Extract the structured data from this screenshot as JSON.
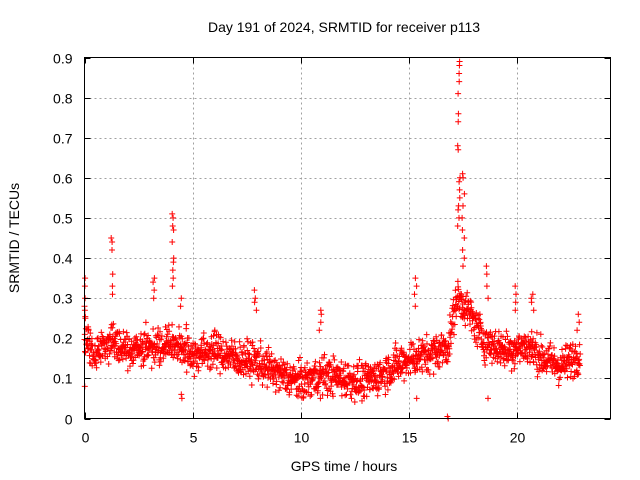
{
  "chart_data": {
    "type": "scatter",
    "title": "Day 191 of 2024, SRMTID for receiver p113",
    "xlabel": "GPS time / hours",
    "ylabel": "SRMTID / TECUs",
    "xlim": [
      0,
      24.3
    ],
    "ylim": [
      0,
      0.9
    ],
    "xticks": [
      0,
      5,
      10,
      15,
      20
    ],
    "xtick_labels": [
      "0",
      "5",
      "10",
      "15",
      "20"
    ],
    "yticks": [
      0,
      0.1,
      0.2,
      0.3,
      0.4,
      0.5,
      0.6,
      0.7,
      0.8,
      0.9
    ],
    "ytick_labels": [
      "0",
      "0.1",
      "0.2",
      "0.3",
      "0.4",
      "0.5",
      "0.6",
      "0.7",
      "0.8",
      "0.9"
    ],
    "grid": true,
    "marker": "+",
    "color": "#ff0000",
    "profile": [
      [
        0.0,
        0.2
      ],
      [
        0.5,
        0.16
      ],
      [
        1.3,
        0.2
      ],
      [
        2.0,
        0.17
      ],
      [
        3.0,
        0.18
      ],
      [
        4.0,
        0.19
      ],
      [
        5.0,
        0.16
      ],
      [
        6.0,
        0.17
      ],
      [
        7.0,
        0.15
      ],
      [
        8.0,
        0.14
      ],
      [
        9.0,
        0.11
      ],
      [
        10.0,
        0.09
      ],
      [
        11.0,
        0.11
      ],
      [
        12.0,
        0.1
      ],
      [
        13.0,
        0.09
      ],
      [
        14.0,
        0.12
      ],
      [
        15.0,
        0.15
      ],
      [
        16.0,
        0.16
      ],
      [
        16.8,
        0.18
      ],
      [
        17.2,
        0.3
      ],
      [
        17.6,
        0.28
      ],
      [
        18.0,
        0.24
      ],
      [
        18.5,
        0.19
      ],
      [
        19.5,
        0.17
      ],
      [
        20.5,
        0.18
      ],
      [
        21.2,
        0.15
      ],
      [
        22.0,
        0.13
      ],
      [
        22.9,
        0.16
      ]
    ],
    "spikes": [
      {
        "x": 0.05,
        "values": [
          0.35,
          0.33,
          0.3,
          0.28,
          0.27,
          0.25,
          0.08
        ]
      },
      {
        "x": 1.25,
        "values": [
          0.45,
          0.44,
          0.42,
          0.36,
          0.33,
          0.31
        ]
      },
      {
        "x": 3.2,
        "values": [
          0.35,
          0.34,
          0.32,
          0.3
        ]
      },
      {
        "x": 4.1,
        "values": [
          0.51,
          0.5,
          0.48,
          0.47,
          0.44,
          0.4,
          0.39,
          0.37,
          0.35,
          0.33
        ]
      },
      {
        "x": 4.5,
        "values": [
          0.3,
          0.28,
          0.06,
          0.05
        ]
      },
      {
        "x": 7.9,
        "values": [
          0.32,
          0.3,
          0.29,
          0.27
        ]
      },
      {
        "x": 10.9,
        "values": [
          0.27,
          0.26,
          0.24,
          0.22,
          0.05
        ]
      },
      {
        "x": 15.3,
        "values": [
          0.35,
          0.33,
          0.31,
          0.28,
          0.05
        ]
      },
      {
        "x": 16.75,
        "values": [
          0.005,
          0.0
        ]
      },
      {
        "x": 17.3,
        "values": [
          0.89,
          0.88,
          0.86,
          0.84,
          0.81,
          0.76,
          0.74,
          0.68,
          0.67,
          0.6,
          0.59,
          0.57,
          0.55,
          0.53,
          0.52,
          0.5,
          0.48
        ]
      },
      {
        "x": 17.5,
        "values": [
          0.61,
          0.6,
          0.56,
          0.53,
          0.5,
          0.47,
          0.45,
          0.42,
          0.4,
          0.38
        ]
      },
      {
        "x": 18.6,
        "values": [
          0.38,
          0.36,
          0.33,
          0.3,
          0.05
        ]
      },
      {
        "x": 19.9,
        "values": [
          0.33,
          0.31,
          0.29,
          0.27
        ]
      },
      {
        "x": 20.7,
        "values": [
          0.31,
          0.3,
          0.29,
          0.27
        ]
      },
      {
        "x": 22.8,
        "values": [
          0.26,
          0.24,
          0.22
        ]
      }
    ],
    "n_points": 1800,
    "noise": 0.045
  }
}
